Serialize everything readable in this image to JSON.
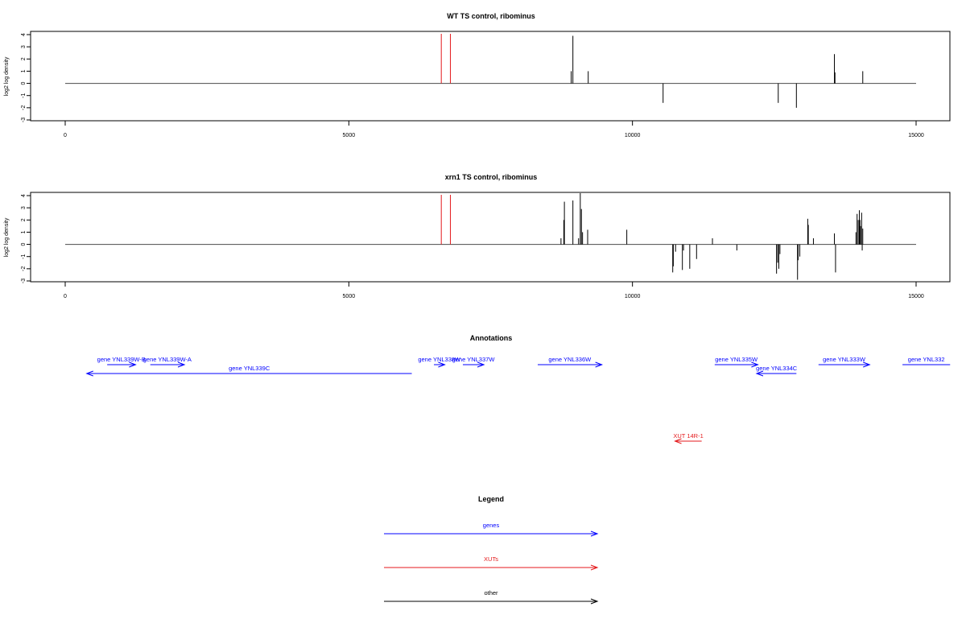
{
  "colors": {
    "gene": "#0000ff",
    "xut": "#e41a1c",
    "other": "#000000",
    "axis": "#000000",
    "baseline": "#000000"
  },
  "chart_data": [
    {
      "type": "bar",
      "title": "WT TS control, ribominus",
      "ylabel": "log2 log density",
      "xlim": [
        0,
        15000
      ],
      "ylim": [
        -3,
        4
      ],
      "xticks": [
        0,
        5000,
        10000,
        15000
      ],
      "yticks": [
        -3,
        -2,
        -1,
        0,
        1,
        2,
        3,
        4
      ],
      "baseline": 0,
      "red_markers": [
        6630,
        6790
      ],
      "bars": [
        {
          "x": 8920,
          "y": 1.0
        },
        {
          "x": 8950,
          "y": 3.9
        },
        {
          "x": 9220,
          "y": 1.0
        },
        {
          "x": 10540,
          "y": -1.6
        },
        {
          "x": 12570,
          "y": -1.6
        },
        {
          "x": 12890,
          "y": -2.0
        },
        {
          "x": 13560,
          "y": 2.4
        },
        {
          "x": 13570,
          "y": 0.9
        },
        {
          "x": 14060,
          "y": 1.0
        }
      ]
    },
    {
      "type": "bar",
      "title": "xrn1 TS control, ribominus",
      "ylabel": "log2 log density",
      "xlim": [
        0,
        15000
      ],
      "ylim": [
        -3,
        4
      ],
      "xticks": [
        0,
        5000,
        10000,
        15000
      ],
      "yticks": [
        -3,
        -2,
        -1,
        0,
        1,
        2,
        3,
        4
      ],
      "baseline": 0,
      "red_markers": [
        6630,
        6790
      ],
      "bars": [
        {
          "x": 8740,
          "y": 0.5
        },
        {
          "x": 8790,
          "y": 2.0
        },
        {
          "x": 8800,
          "y": 3.5
        },
        {
          "x": 8950,
          "y": 3.6
        },
        {
          "x": 9050,
          "y": 0.5
        },
        {
          "x": 9080,
          "y": 4.2
        },
        {
          "x": 9100,
          "y": 2.9
        },
        {
          "x": 9120,
          "y": 1.0
        },
        {
          "x": 9210,
          "y": 1.2
        },
        {
          "x": 9900,
          "y": 1.2
        },
        {
          "x": 10710,
          "y": -2.3
        },
        {
          "x": 10720,
          "y": -1.8
        },
        {
          "x": 10760,
          "y": -0.6
        },
        {
          "x": 10880,
          "y": -2.1
        },
        {
          "x": 10900,
          "y": -0.5
        },
        {
          "x": 11010,
          "y": -2.0
        },
        {
          "x": 11130,
          "y": -1.2
        },
        {
          "x": 11410,
          "y": 0.5
        },
        {
          "x": 11840,
          "y": -0.5
        },
        {
          "x": 12540,
          "y": -2.4
        },
        {
          "x": 12560,
          "y": -1.5
        },
        {
          "x": 12580,
          "y": -2.0
        },
        {
          "x": 12600,
          "y": -0.8
        },
        {
          "x": 12910,
          "y": -2.9
        },
        {
          "x": 12920,
          "y": -1.3
        },
        {
          "x": 12950,
          "y": -1.0
        },
        {
          "x": 13090,
          "y": 2.1
        },
        {
          "x": 13100,
          "y": 1.6
        },
        {
          "x": 13190,
          "y": 0.5
        },
        {
          "x": 13560,
          "y": 0.9
        },
        {
          "x": 13580,
          "y": -2.3
        },
        {
          "x": 13940,
          "y": 1.0
        },
        {
          "x": 13960,
          "y": 2.5
        },
        {
          "x": 13980,
          "y": 2.0
        },
        {
          "x": 14000,
          "y": 2.8
        },
        {
          "x": 14010,
          "y": 2.0
        },
        {
          "x": 14020,
          "y": 1.5
        },
        {
          "x": 14040,
          "y": 2.6
        },
        {
          "x": 14050,
          "y": -0.5
        },
        {
          "x": 14060,
          "y": 1.3
        }
      ]
    }
  ],
  "annotations": {
    "title": "Annotations",
    "features": [
      {
        "label": "gene YNL339W-B",
        "kind": "gene",
        "start": 740,
        "end": 1240,
        "strand": "+",
        "row": 0
      },
      {
        "label": "gene YNL339W-A",
        "kind": "gene",
        "start": 1500,
        "end": 2100,
        "strand": "+",
        "row": 0
      },
      {
        "label": "gene YNL339C",
        "kind": "gene",
        "start": 380,
        "end": 6110,
        "strand": "-",
        "row": 1
      },
      {
        "label": "gene YNL338W",
        "kind": "gene",
        "start": 6500,
        "end": 6690,
        "strand": "+",
        "row": 0
      },
      {
        "label": "gene YNL337W",
        "kind": "gene",
        "start": 7010,
        "end": 7380,
        "strand": "+",
        "row": 0
      },
      {
        "label": "gene YNL336W",
        "kind": "gene",
        "start": 8330,
        "end": 9460,
        "strand": "+",
        "row": 0
      },
      {
        "label": "gene YNL335W",
        "kind": "gene",
        "start": 11450,
        "end": 12210,
        "strand": "+",
        "row": 0
      },
      {
        "label": "gene YNL334C",
        "kind": "gene",
        "start": 12190,
        "end": 12890,
        "strand": "-",
        "row": 1
      },
      {
        "label": "gene YNL333W",
        "kind": "gene",
        "start": 13280,
        "end": 14180,
        "strand": "+",
        "row": 0
      },
      {
        "label": "gene YNL332",
        "kind": "gene",
        "start": 14760,
        "end": 15600,
        "strand": "+",
        "row": 0
      },
      {
        "label": "XUT 14R-1",
        "kind": "xut",
        "start": 10750,
        "end": 11220,
        "strand": "-",
        "row": 2
      }
    ]
  },
  "legend": {
    "title": "Legend",
    "items": [
      {
        "label": "genes",
        "kind": "gene"
      },
      {
        "label": "XUTs",
        "kind": "xut"
      },
      {
        "label": "other",
        "kind": "other"
      }
    ]
  }
}
